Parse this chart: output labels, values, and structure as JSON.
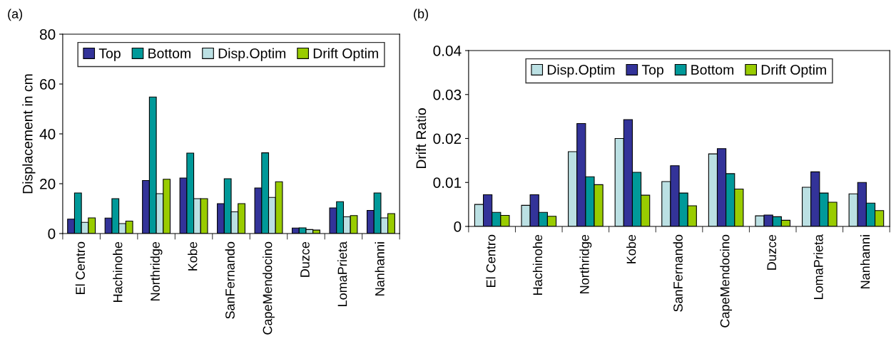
{
  "chart_data": [
    {
      "type": "bar",
      "ylabel": "Displacement in cm",
      "annotations": [
        "(a)"
      ],
      "categories": [
        "El Centro",
        "Hachinohe",
        "Northridge",
        "Kobe",
        "SanFernando",
        "CapeMendocino",
        "Duzce",
        "LomaPrieta",
        "Nanhanni"
      ],
      "series": [
        {
          "name": "Top",
          "color": "#333399",
          "values": [
            5.8,
            6.2,
            21.3,
            22.3,
            12,
            18.3,
            2.2,
            10.3,
            9.3
          ]
        },
        {
          "name": "Bottom",
          "color": "#009999",
          "values": [
            16.3,
            14,
            54.8,
            32.3,
            22,
            32.4,
            2.3,
            12.8,
            16.3
          ]
        },
        {
          "name": "Disp.Optim",
          "color": "#bbe0e3",
          "values": [
            4.5,
            4,
            16,
            14,
            8.7,
            14.5,
            1.6,
            6.7,
            6.3
          ]
        },
        {
          "name": "Drift Optim",
          "color": "#99cc00",
          "values": [
            6.3,
            5,
            21.8,
            14,
            12,
            20.8,
            1.4,
            7.2,
            8
          ]
        }
      ],
      "ylim": [
        0,
        80
      ],
      "yticks": [
        0,
        20,
        40,
        60,
        80
      ],
      "grid": false,
      "legend": "top"
    },
    {
      "type": "bar",
      "ylabel": "Drift Ratio",
      "annotations": [
        "(b)"
      ],
      "categories": [
        "El Centro",
        "Hachinohe",
        "Northridge",
        "Kobe",
        "SanFernando",
        "CapeMendocino",
        "Duzce",
        "LomaPrieta",
        "Nanhanni"
      ],
      "series": [
        {
          "name": "Disp.Optim",
          "color": "#bbe0e3",
          "values": [
            0.005,
            0.0048,
            0.017,
            0.02,
            0.0102,
            0.0165,
            0.0024,
            0.0089,
            0.0074
          ]
        },
        {
          "name": "Top",
          "color": "#333399",
          "values": [
            0.0072,
            0.0072,
            0.0234,
            0.0243,
            0.0138,
            0.0177,
            0.0026,
            0.0124,
            0.01
          ]
        },
        {
          "name": "Bottom",
          "color": "#009999",
          "values": [
            0.0032,
            0.0032,
            0.0113,
            0.0123,
            0.0076,
            0.012,
            0.0022,
            0.0076,
            0.0053
          ]
        },
        {
          "name": "Drift Optim",
          "color": "#99cc00",
          "values": [
            0.0025,
            0.0023,
            0.0095,
            0.0071,
            0.0047,
            0.0085,
            0.0014,
            0.0055,
            0.0036
          ]
        }
      ],
      "ylim": [
        0,
        0.04
      ],
      "yticks": [
        0,
        0.01,
        0.02,
        0.03,
        0.04
      ],
      "grid": false,
      "legend": "top"
    }
  ]
}
